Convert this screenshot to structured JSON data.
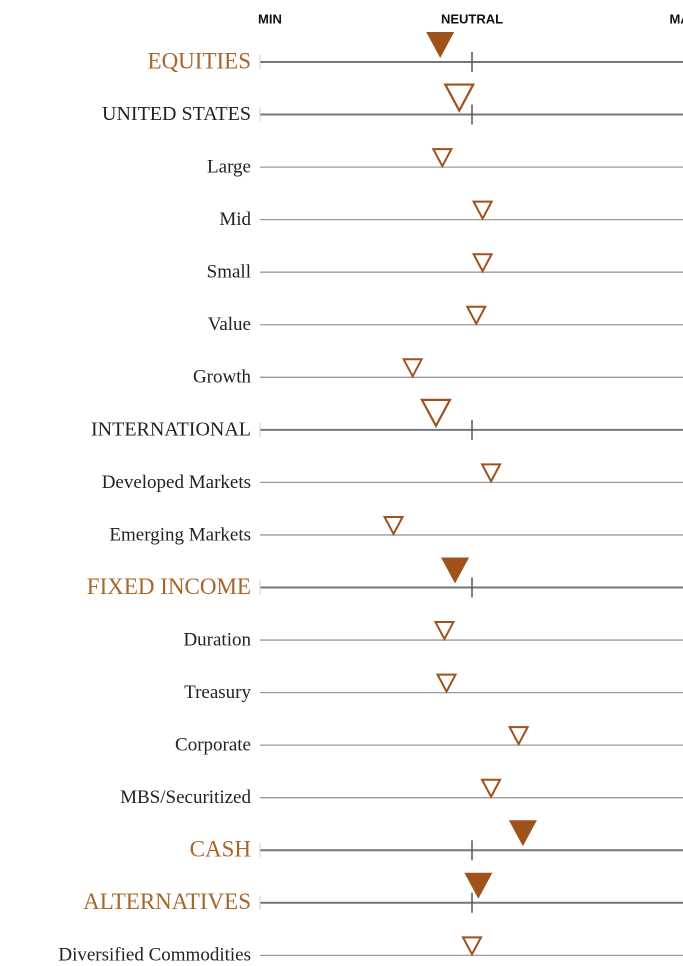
{
  "chart_data": {
    "type": "tilt",
    "categories": [
      "EQUITIES",
      "UNITED STATES",
      "Large",
      "Mid",
      "Small",
      "Value",
      "Growth",
      "INTERNATIONAL",
      "Developed Markets",
      "Emerging Markets",
      "FIXED INCOME",
      "Duration",
      "Treasury",
      "Corporate",
      "MBS/Securitized",
      "CASH",
      "ALTERNATIVES",
      "Diversified Commodities"
    ],
    "levels": [
      "header",
      "sub",
      "item",
      "item",
      "item",
      "item",
      "item",
      "sub",
      "item",
      "item",
      "header",
      "item",
      "item",
      "item",
      "item",
      "header",
      "header",
      "item"
    ],
    "values": [
      -0.15,
      -0.06,
      -0.14,
      0.05,
      0.05,
      0.02,
      -0.28,
      -0.17,
      0.09,
      -0.37,
      -0.08,
      -0.13,
      -0.12,
      0.22,
      0.09,
      0.24,
      0.03,
      0.0
    ],
    "xlim": [
      -1,
      1
    ],
    "xticks": [
      {
        "value": -1,
        "label": "MIN"
      },
      {
        "value": 0,
        "label": "NEUTRAL"
      },
      {
        "value": 1,
        "label": "MAX"
      }
    ],
    "color": "#a0521c"
  }
}
